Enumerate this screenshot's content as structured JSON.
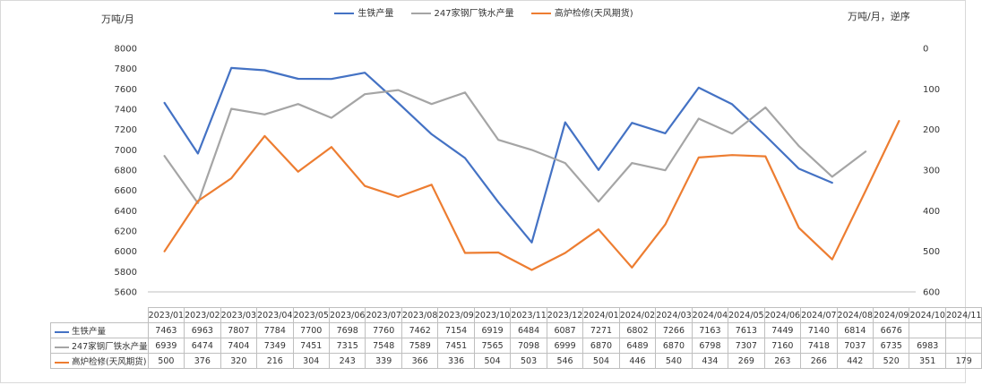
{
  "chart_data": {
    "type": "line",
    "title": "",
    "left_axis": {
      "unit": "万吨/月",
      "min": 5600,
      "max": 8000,
      "step": 200
    },
    "right_axis": {
      "unit": "万吨/月，逆序",
      "min": 0,
      "max": 600,
      "step": 100,
      "reversed": true
    },
    "grid": false,
    "legend_position": "top",
    "categories": [
      "2023/01",
      "2023/02",
      "2023/03",
      "2023/04",
      "2023/05",
      "2023/06",
      "2023/07",
      "2023/08",
      "2023/09",
      "2023/10",
      "2023/11",
      "2023/12",
      "2024/01",
      "2024/02",
      "2024/03",
      "2024/04",
      "2024/05",
      "2024/06",
      "2024/07",
      "2024/08",
      "2024/09",
      "2024/10",
      "2024/11"
    ],
    "series": [
      {
        "name": "生铁产量",
        "color": "#4472c4",
        "axis": "left",
        "values": [
          7463,
          6963,
          7807,
          7784,
          7700,
          7698,
          7760,
          7462,
          7154,
          6919,
          6484,
          6087,
          7271,
          6802,
          7266,
          7163,
          7613,
          7449,
          7140,
          6814,
          6676,
          null,
          null
        ]
      },
      {
        "name": "247家钢厂铁水产量",
        "color": "#a5a5a5",
        "axis": "left",
        "values": [
          6939,
          6474,
          7404,
          7349,
          7451,
          7315,
          7548,
          7589,
          7451,
          7565,
          7098,
          6999,
          6870,
          6489,
          6870,
          6798,
          7307,
          7160,
          7418,
          7037,
          6735,
          6983,
          null
        ]
      },
      {
        "name": "高炉检修(天风期货)",
        "color": "#ed7d31",
        "axis": "right",
        "values": [
          500,
          376,
          320,
          216,
          304,
          243,
          339,
          366,
          336,
          504,
          503,
          546,
          504,
          446,
          540,
          434,
          269,
          263,
          266,
          442,
          520,
          351,
          179
        ]
      }
    ]
  }
}
